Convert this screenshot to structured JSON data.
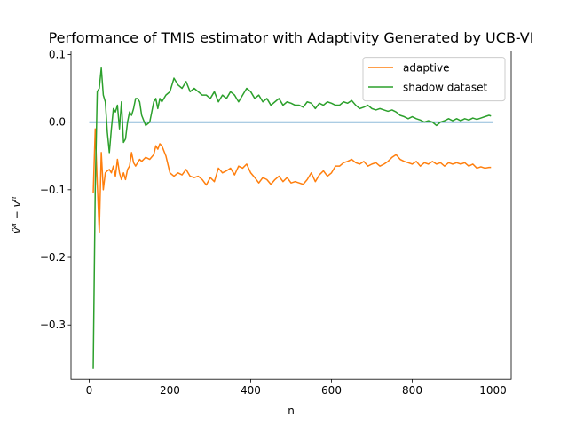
{
  "chart_data": {
    "type": "line",
    "title": "Performance of TMIS estimator with Adaptivity Generated by UCB-VI",
    "xlabel": "n",
    "ylabel": "v̂^π − v^π",
    "xlim": [
      -45,
      1045
    ],
    "ylim": [
      -0.38,
      0.105
    ],
    "xticks": [
      0,
      200,
      400,
      600,
      800,
      1000
    ],
    "xtick_labels": [
      "0",
      "200",
      "400",
      "600",
      "800",
      "1000"
    ],
    "yticks": [
      -0.3,
      -0.2,
      -0.1,
      0.0,
      0.1
    ],
    "ytick_labels": [
      "−0.3",
      "−0.2",
      "−0.1",
      "0.0",
      "0.1"
    ],
    "grid": false,
    "legend_position": "top-right",
    "baseline": {
      "y": 0.0,
      "x_range": [
        0,
        1000
      ],
      "color": "#1f77b4"
    },
    "series": [
      {
        "name": "adaptive",
        "color": "#ff7f0e",
        "x": [
          10,
          15,
          20,
          25,
          30,
          35,
          40,
          45,
          50,
          55,
          60,
          65,
          70,
          75,
          80,
          85,
          90,
          95,
          100,
          105,
          110,
          115,
          120,
          125,
          130,
          140,
          150,
          160,
          165,
          170,
          175,
          180,
          190,
          200,
          210,
          220,
          230,
          240,
          250,
          260,
          270,
          280,
          290,
          300,
          310,
          320,
          330,
          340,
          350,
          360,
          370,
          380,
          390,
          400,
          410,
          420,
          430,
          440,
          450,
          460,
          470,
          480,
          490,
          500,
          510,
          520,
          530,
          540,
          550,
          560,
          570,
          580,
          590,
          600,
          610,
          620,
          630,
          640,
          650,
          660,
          670,
          680,
          690,
          700,
          710,
          720,
          730,
          740,
          750,
          760,
          770,
          780,
          790,
          800,
          810,
          820,
          830,
          840,
          850,
          860,
          870,
          880,
          890,
          900,
          910,
          920,
          930,
          940,
          950,
          960,
          970,
          980,
          990,
          995
        ],
        "y": [
          -0.105,
          -0.01,
          -0.09,
          -0.163,
          -0.045,
          -0.1,
          -0.075,
          -0.072,
          -0.07,
          -0.075,
          -0.065,
          -0.08,
          -0.055,
          -0.075,
          -0.085,
          -0.075,
          -0.085,
          -0.07,
          -0.065,
          -0.045,
          -0.06,
          -0.065,
          -0.06,
          -0.055,
          -0.058,
          -0.052,
          -0.055,
          -0.048,
          -0.035,
          -0.04,
          -0.032,
          -0.035,
          -0.05,
          -0.075,
          -0.08,
          -0.075,
          -0.078,
          -0.07,
          -0.08,
          -0.082,
          -0.08,
          -0.085,
          -0.093,
          -0.082,
          -0.088,
          -0.068,
          -0.075,
          -0.072,
          -0.068,
          -0.078,
          -0.065,
          -0.068,
          -0.062,
          -0.075,
          -0.082,
          -0.09,
          -0.082,
          -0.085,
          -0.092,
          -0.085,
          -0.08,
          -0.088,
          -0.082,
          -0.09,
          -0.088,
          -0.09,
          -0.092,
          -0.085,
          -0.075,
          -0.088,
          -0.078,
          -0.072,
          -0.08,
          -0.075,
          -0.065,
          -0.065,
          -0.06,
          -0.058,
          -0.055,
          -0.06,
          -0.062,
          -0.058,
          -0.065,
          -0.062,
          -0.06,
          -0.065,
          -0.062,
          -0.058,
          -0.052,
          -0.048,
          -0.055,
          -0.058,
          -0.06,
          -0.062,
          -0.058,
          -0.065,
          -0.06,
          -0.062,
          -0.058,
          -0.062,
          -0.06,
          -0.065,
          -0.06,
          -0.062,
          -0.06,
          -0.062,
          -0.06,
          -0.065,
          -0.062,
          -0.068,
          -0.066,
          -0.068,
          -0.067,
          -0.067
        ]
      },
      {
        "name": "shadow dataset",
        "color": "#2ca02c",
        "x": [
          10,
          15,
          20,
          25,
          30,
          35,
          40,
          45,
          50,
          55,
          60,
          65,
          70,
          75,
          80,
          85,
          90,
          95,
          100,
          105,
          110,
          115,
          120,
          125,
          130,
          140,
          150,
          160,
          165,
          170,
          175,
          180,
          190,
          200,
          210,
          220,
          230,
          240,
          250,
          260,
          270,
          280,
          290,
          300,
          310,
          320,
          330,
          340,
          350,
          360,
          370,
          380,
          390,
          400,
          410,
          420,
          430,
          440,
          450,
          460,
          470,
          480,
          490,
          500,
          510,
          520,
          530,
          540,
          550,
          560,
          570,
          580,
          590,
          600,
          610,
          620,
          630,
          640,
          650,
          660,
          670,
          680,
          690,
          700,
          710,
          720,
          730,
          740,
          750,
          760,
          770,
          780,
          790,
          800,
          810,
          820,
          830,
          840,
          850,
          860,
          870,
          880,
          890,
          900,
          910,
          920,
          930,
          940,
          950,
          960,
          970,
          980,
          990,
          995
        ],
        "y": [
          -0.365,
          -0.1,
          0.045,
          0.05,
          0.08,
          0.04,
          0.03,
          -0.015,
          -0.045,
          -0.01,
          0.02,
          0.015,
          0.025,
          -0.01,
          0.03,
          -0.03,
          -0.025,
          0.0,
          0.015,
          0.01,
          0.02,
          0.035,
          0.035,
          0.03,
          0.01,
          -0.005,
          0.0,
          0.03,
          0.035,
          0.02,
          0.035,
          0.03,
          0.04,
          0.045,
          0.065,
          0.055,
          0.05,
          0.06,
          0.045,
          0.05,
          0.045,
          0.04,
          0.04,
          0.035,
          0.045,
          0.03,
          0.04,
          0.035,
          0.045,
          0.04,
          0.03,
          0.04,
          0.05,
          0.045,
          0.035,
          0.04,
          0.03,
          0.035,
          0.025,
          0.03,
          0.035,
          0.025,
          0.03,
          0.028,
          0.025,
          0.025,
          0.022,
          0.03,
          0.028,
          0.02,
          0.028,
          0.025,
          0.03,
          0.028,
          0.025,
          0.025,
          0.03,
          0.028,
          0.032,
          0.025,
          0.02,
          0.022,
          0.025,
          0.02,
          0.018,
          0.02,
          0.018,
          0.016,
          0.018,
          0.015,
          0.01,
          0.008,
          0.005,
          0.008,
          0.005,
          0.003,
          0.0,
          0.002,
          0.0,
          -0.005,
          0.0,
          0.002,
          0.005,
          0.002,
          0.005,
          0.002,
          0.005,
          0.003,
          0.006,
          0.004,
          0.006,
          0.008,
          0.01,
          0.009
        ]
      }
    ]
  }
}
